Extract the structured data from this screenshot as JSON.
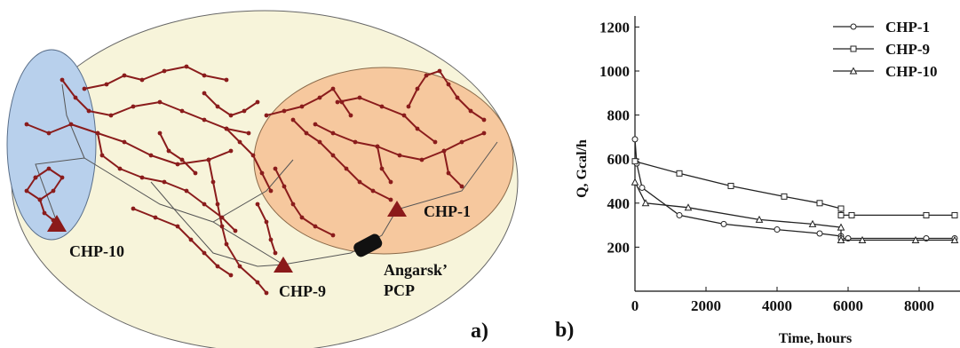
{
  "panel_a": {
    "panel_label": "a)",
    "plants": [
      {
        "name": "CHP-10"
      },
      {
        "name": "CHP-9"
      },
      {
        "name": "CHP-1"
      }
    ],
    "pcp_label_line1": "Angarsk’",
    "pcp_label_line2": "PCP",
    "colors": {
      "city_zone": "#f7f4da",
      "chp10_zone": "#b8d0ec",
      "chp1_zone": "#f6c89e",
      "network": "#8a1c1c",
      "plant_marker": "#8b1a1a"
    }
  },
  "panel_b": {
    "panel_label": "b)"
  },
  "chart_data": {
    "type": "line",
    "xlabel": "Time, hours",
    "ylabel": "Q, Gcal/h",
    "xlim": [
      0,
      9000
    ],
    "ylim": [
      0,
      1250
    ],
    "x_ticks": [
      0,
      2000,
      4000,
      6000,
      8000
    ],
    "y_ticks": [
      200,
      400,
      600,
      800,
      1000,
      1200
    ],
    "grid": false,
    "legend_position": "top-right",
    "series": [
      {
        "name": "CHP-1",
        "marker": "circle",
        "points": [
          [
            0,
            690
          ],
          [
            50,
            580
          ],
          [
            200,
            470
          ],
          [
            1250,
            345
          ],
          [
            2500,
            305
          ],
          [
            4000,
            280
          ],
          [
            5200,
            262
          ],
          [
            5800,
            250
          ],
          [
            5800,
            240
          ],
          [
            6000,
            240
          ],
          [
            8200,
            240
          ],
          [
            9000,
            240
          ]
        ]
      },
      {
        "name": "CHP-9",
        "marker": "square",
        "points": [
          [
            0,
            590
          ],
          [
            1250,
            535
          ],
          [
            2700,
            478
          ],
          [
            4200,
            430
          ],
          [
            5200,
            400
          ],
          [
            5800,
            375
          ],
          [
            5800,
            345
          ],
          [
            6100,
            345
          ],
          [
            8200,
            345
          ],
          [
            9000,
            345
          ]
        ]
      },
      {
        "name": "CHP-10",
        "marker": "triangle",
        "points": [
          [
            0,
            495
          ],
          [
            300,
            400
          ],
          [
            1500,
            380
          ],
          [
            3500,
            325
          ],
          [
            5000,
            305
          ],
          [
            5800,
            290
          ],
          [
            5800,
            232
          ],
          [
            6400,
            232
          ],
          [
            7900,
            232
          ],
          [
            9000,
            232
          ]
        ]
      }
    ]
  }
}
